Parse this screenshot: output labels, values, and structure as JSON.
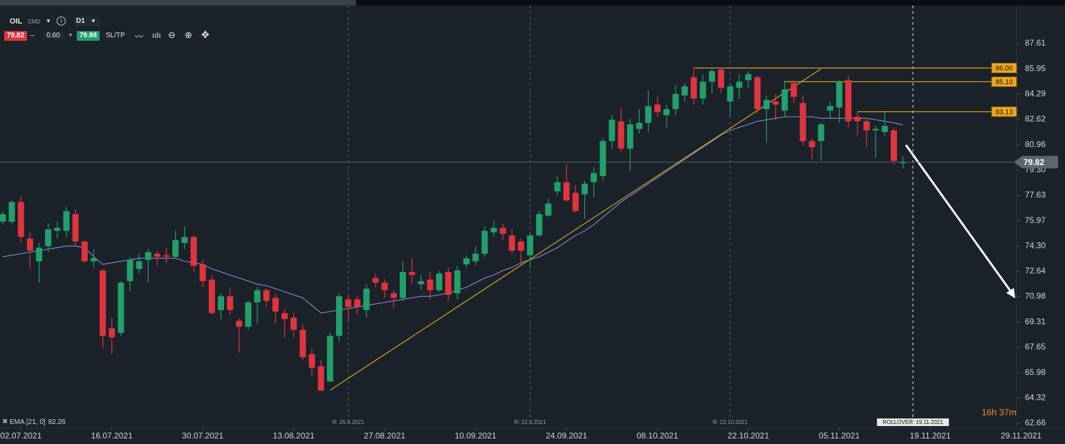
{
  "toolbar": {
    "symbol": "OIL",
    "market": "CMD",
    "timeframe": "D1",
    "bid": "79.82",
    "spread": "0.60",
    "ask": "79.88",
    "sltp": "SL/TP"
  },
  "chart_data": {
    "type": "candlestick",
    "up_color": "#22a06b",
    "down_color": "#e0343f",
    "xlim": [
      -0.3,
      111.5
    ],
    "xticks": [
      {
        "value": 2,
        "label": "02.07.2021"
      },
      {
        "value": 12,
        "label": "16.07.2021"
      },
      {
        "value": 22,
        "label": "30.07.2021"
      },
      {
        "value": 32,
        "label": "13.08.2021"
      },
      {
        "value": 42,
        "label": "27.08.2021"
      },
      {
        "value": 52,
        "label": "10.09.2021"
      },
      {
        "value": 62,
        "label": "24.09.2021"
      },
      {
        "value": 72,
        "label": "08.10.2021"
      },
      {
        "value": 82,
        "label": "22.10.2021"
      },
      {
        "value": 92,
        "label": "05.11.2021"
      },
      {
        "value": 102,
        "label": "19.11.2021"
      },
      {
        "value": 112,
        "label": "29.11.2021"
      }
    ],
    "ylim": [
      62.34,
      90.47
    ],
    "yticks": [
      87.61,
      85.95,
      84.29,
      82.62,
      80.96,
      {
        "value": 79.3,
        "label": "79.30"
      },
      77.63,
      75.97,
      {
        "value": 74.3,
        "label": "74.30"
      },
      72.64,
      70.98,
      69.31,
      67.65,
      65.98,
      64.32,
      62.66
    ],
    "open": [
      75.9,
      75.9,
      77.2,
      74.8,
      73.3,
      74.3,
      75.3,
      75.3,
      76.4,
      74.6,
      73.3,
      72.7,
      68.9,
      68.6,
      72.0,
      72.8,
      73.4,
      73.8,
      73.7,
      73.6,
      74.5,
      74.9,
      73.1,
      72.1,
      70.1,
      71.0,
      69.4,
      69.0,
      70.6,
      71.4,
      70.9,
      69.9,
      69.6,
      68.8,
      67.2,
      66.4,
      65.4,
      68.4,
      70.8,
      70.8,
      70.1,
      72.2,
      71.9,
      71.2,
      70.9,
      72.6,
      71.8,
      72.1,
      71.4,
      72.6,
      71.2,
      73.1,
      73.3,
      73.8,
      75.2,
      75.5,
      75.0,
      74.6,
      73.7,
      75.0,
      76.3,
      77.9,
      78.5,
      77.8,
      77.7,
      78.5,
      78.9,
      81.2,
      82.5,
      80.7,
      82.0,
      82.4,
      83.6,
      82.9,
      83.3,
      84.2,
      85.4,
      84.0,
      85.1,
      85.9,
      83.8,
      84.7,
      85.2,
      85.4,
      83.3,
      83.8,
      83.2,
      85.0,
      83.7,
      81.2,
      81.2,
      83.2,
      83.4,
      85.2,
      82.8,
      82.5,
      81.9,
      81.8,
      81.9,
      79.8
    ],
    "high": [
      76.6,
      77.3,
      77.6,
      75.2,
      74.5,
      75.8,
      75.9,
      76.9,
      76.7,
      74.7,
      74.1,
      72.8,
      69.6,
      72.0,
      73.6,
      73.8,
      74.1,
      74.0,
      74.2,
      75.3,
      75.6,
      75.0,
      73.4,
      72.4,
      71.2,
      71.6,
      69.6,
      70.7,
      71.6,
      71.5,
      71.2,
      70.2,
      69.9,
      69.2,
      67.6,
      66.8,
      68.6,
      71.2,
      71.1,
      71.0,
      71.8,
      72.5,
      72.1,
      71.4,
      73.3,
      73.5,
      72.4,
      72.6,
      72.7,
      72.9,
      73.0,
      73.7,
      74.3,
      75.6,
      76.0,
      75.8,
      75.4,
      74.8,
      75.2,
      76.6,
      77.4,
      78.9,
      79.7,
      78.3,
      78.6,
      79.5,
      81.4,
      82.9,
      83.4,
      82.7,
      83.3,
      84.5,
      84.1,
      83.6,
      84.9,
      85.0,
      86.0,
      85.6,
      86.0,
      86.0,
      85.0,
      85.6,
      85.8,
      85.5,
      84.2,
      84.3,
      85.2,
      85.2,
      84.2,
      81.4,
      82.4,
      83.8,
      85.2,
      85.5,
      83.1,
      82.7,
      82.2,
      83.1,
      82.1,
      80.2
    ],
    "low": [
      75.7,
      75.7,
      74.5,
      72.8,
      71.9,
      73.9,
      74.8,
      74.9,
      74.3,
      73.2,
      72.9,
      67.6,
      67.2,
      68.4,
      71.3,
      72.5,
      71.9,
      73.0,
      73.2,
      73.5,
      74.1,
      72.6,
      71.6,
      69.8,
      69.5,
      69.8,
      67.3,
      68.8,
      69.2,
      70.3,
      69.2,
      68.3,
      68.3,
      66.8,
      65.8,
      64.8,
      65.4,
      68.0,
      69.3,
      69.8,
      69.6,
      71.6,
      70.9,
      70.2,
      70.7,
      71.8,
      71.4,
      70.8,
      71.3,
      70.7,
      70.8,
      72.9,
      73.0,
      73.6,
      74.9,
      74.7,
      73.8,
      73.1,
      72.9,
      74.9,
      76.2,
      77.6,
      77.2,
      76.5,
      76.1,
      77.5,
      78.6,
      80.7,
      80.5,
      79.2,
      81.7,
      81.8,
      82.8,
      82.1,
      82.9,
      83.8,
      83.6,
      83.6,
      84.3,
      84.4,
      82.8,
      84.0,
      84.7,
      83.0,
      81.1,
      82.6,
      82.8,
      83.7,
      80.9,
      80.0,
      79.9,
      82.7,
      82.4,
      82.1,
      81.5,
      80.8,
      80.1,
      81.5,
      79.6,
      79.4
    ],
    "close": [
      76.4,
      77.2,
      74.9,
      74.0,
      74.2,
      75.4,
      75.5,
      76.6,
      74.6,
      73.3,
      73.5,
      68.4,
      68.3,
      71.9,
      73.4,
      73.3,
      73.9,
      73.6,
      73.6,
      74.7,
      74.9,
      73.0,
      72.0,
      69.9,
      71.0,
      70.1,
      69.0,
      70.6,
      71.4,
      70.7,
      70.0,
      69.5,
      68.8,
      67.0,
      66.3,
      64.8,
      68.4,
      71.0,
      70.3,
      70.3,
      71.5,
      71.9,
      71.4,
      70.9,
      72.6,
      72.4,
      72.0,
      71.4,
      72.5,
      71.1,
      72.7,
      73.5,
      73.8,
      75.3,
      75.5,
      75.1,
      74.0,
      74.0,
      75.0,
      76.4,
      77.1,
      78.5,
      77.3,
      76.6,
      78.4,
      79.1,
      81.2,
      82.6,
      80.7,
      82.3,
      82.4,
      83.5,
      83.1,
      83.3,
      84.3,
      84.8,
      84.0,
      85.1,
      85.8,
      84.7,
      84.8,
      85.1,
      85.6,
      83.3,
      83.9,
      83.6,
      84.6,
      84.1,
      81.2,
      80.8,
      82.3,
      83.5,
      85.1,
      82.5,
      82.5,
      81.9,
      82.0,
      82.2,
      79.9,
      79.82
    ],
    "ema": {
      "name": "EMA [21, 0]",
      "color": "#7f86c4",
      "values": [
        73.6,
        73.7,
        73.8,
        73.9,
        74.0,
        74.1,
        74.2,
        74.3,
        74.3,
        74.2,
        73.6,
        73.1,
        73.2,
        73.3,
        73.4,
        73.5,
        73.5,
        73.5,
        73.5,
        73.5,
        73.3,
        73.2,
        73.1,
        72.8,
        72.6,
        72.4,
        72.2,
        72.0,
        71.8,
        71.7,
        71.5,
        71.3,
        71.1,
        70.9,
        70.4,
        69.9,
        70.0,
        70.1,
        70.2,
        70.3,
        70.4,
        70.5,
        70.6,
        70.7,
        70.8,
        70.9,
        71.0,
        71.0,
        71.1,
        71.2,
        71.4,
        71.6,
        71.9,
        72.2,
        72.4,
        72.7,
        72.9,
        73.2,
        73.4,
        73.6,
        73.9,
        74.2,
        74.6,
        75.0,
        75.3,
        75.7,
        76.2,
        76.7,
        77.2,
        77.6,
        78.0,
        78.4,
        78.8,
        79.2,
        79.6,
        80.0,
        80.4,
        80.8,
        81.2,
        81.6,
        81.9,
        82.1,
        82.3,
        82.5,
        82.6,
        82.7,
        82.8,
        82.8,
        82.8,
        82.8,
        82.7,
        82.7,
        82.7,
        82.7,
        82.7,
        82.7,
        82.6,
        82.5,
        82.4,
        82.26
      ]
    },
    "last_price": 79.82,
    "trendline": {
      "x": [
        36,
        90
      ],
      "y": [
        64.83,
        85.95
      ],
      "color": "#d9a521"
    },
    "levels": [
      {
        "value": 86,
        "label": "86.00",
        "x_start": 76
      },
      {
        "value": 85.1,
        "label": "85.10",
        "x_start": 86
      },
      {
        "value": 83.13,
        "x_start": 94
      }
    ],
    "level_color": "#d9a521",
    "vlines": [
      {
        "x": 38,
        "label": "R: 25.8.2021"
      },
      {
        "x": 58,
        "label": "R: 22.9.2021"
      },
      {
        "x": 80,
        "label": "R: 22.10.2021"
      },
      {
        "x": 100.1,
        "label": "ROLLOVER: 19.11.2021"
      }
    ],
    "timer": "16h 37m"
  }
}
